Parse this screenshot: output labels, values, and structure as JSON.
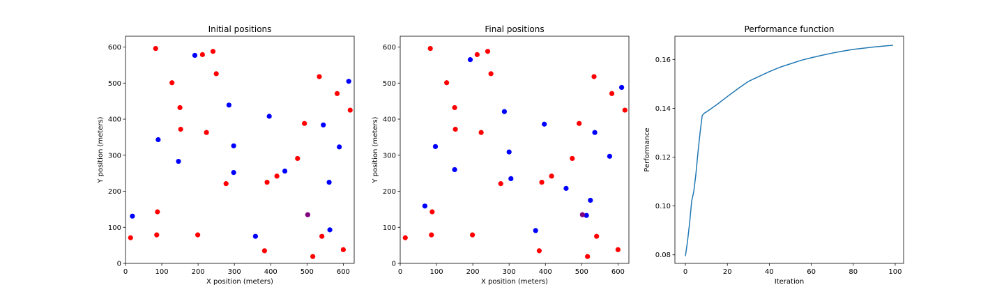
{
  "chart_data": [
    {
      "type": "scatter",
      "title": "Initial positions",
      "xlabel": "X position (meters)",
      "ylabel": "Y position (meters)",
      "xlim": [
        0,
        630
      ],
      "ylim": [
        0,
        630
      ],
      "xticks": [
        0,
        100,
        200,
        300,
        400,
        500,
        600
      ],
      "yticks": [
        0,
        100,
        200,
        300,
        400,
        500,
        600
      ],
      "series": [
        {
          "color": "#ff0000",
          "points": [
            [
              83,
              596
            ],
            [
              212,
              579
            ],
            [
              241,
              588
            ],
            [
              250,
              526
            ],
            [
              128,
              501
            ],
            [
              150,
              432
            ],
            [
              152,
              372
            ],
            [
              223,
              363
            ],
            [
              14,
              71
            ],
            [
              88,
              143
            ],
            [
              86,
              79
            ],
            [
              199,
              79
            ],
            [
              277,
              221
            ],
            [
              390,
              225
            ],
            [
              417,
              242
            ],
            [
              474,
              291
            ],
            [
              493,
              388
            ],
            [
              534,
              518
            ],
            [
              583,
              471
            ],
            [
              619,
              425
            ],
            [
              383,
              35
            ],
            [
              516,
              19
            ],
            [
              541,
              75
            ],
            [
              600,
              38
            ]
          ]
        },
        {
          "color": "#0000ff",
          "points": [
            [
              191,
              577
            ],
            [
              285,
              439
            ],
            [
              396,
              408
            ],
            [
              90,
              343
            ],
            [
              146,
              283
            ],
            [
              298,
              326
            ],
            [
              298,
              252
            ],
            [
              439,
              256
            ],
            [
              19,
              131
            ],
            [
              358,
              75
            ],
            [
              545,
              384
            ],
            [
              589,
              323
            ],
            [
              561,
              225
            ],
            [
              563,
              93
            ],
            [
              615,
              505
            ]
          ]
        },
        {
          "color": "#800080",
          "points": [
            [
              502,
              135
            ]
          ]
        }
      ]
    },
    {
      "type": "scatter",
      "title": "Final positions",
      "xlabel": "X position (meters)",
      "ylabel": "Y position (meters)",
      "xlim": [
        0,
        630
      ],
      "ylim": [
        0,
        630
      ],
      "xticks": [
        0,
        100,
        200,
        300,
        400,
        500,
        600
      ],
      "yticks": [
        0,
        100,
        200,
        300,
        400,
        500,
        600
      ],
      "series": [
        {
          "color": "#ff0000",
          "points": [
            [
              83,
              596
            ],
            [
              212,
              579
            ],
            [
              241,
              588
            ],
            [
              250,
              526
            ],
            [
              128,
              501
            ],
            [
              150,
              432
            ],
            [
              152,
              372
            ],
            [
              223,
              363
            ],
            [
              14,
              71
            ],
            [
              88,
              143
            ],
            [
              86,
              79
            ],
            [
              199,
              79
            ],
            [
              277,
              221
            ],
            [
              390,
              225
            ],
            [
              417,
              242
            ],
            [
              474,
              291
            ],
            [
              493,
              388
            ],
            [
              534,
              518
            ],
            [
              583,
              471
            ],
            [
              619,
              425
            ],
            [
              383,
              35
            ],
            [
              516,
              19
            ],
            [
              541,
              75
            ],
            [
              600,
              38
            ]
          ]
        },
        {
          "color": "#0000ff",
          "points": [
            [
              193,
              565
            ],
            [
              287,
              421
            ],
            [
              397,
              386
            ],
            [
              97,
              324
            ],
            [
              150,
              260
            ],
            [
              300,
              309
            ],
            [
              305,
              235
            ],
            [
              457,
              208
            ],
            [
              68,
              159
            ],
            [
              373,
              91
            ],
            [
              536,
              363
            ],
            [
              577,
              297
            ],
            [
              524,
              175
            ],
            [
              513,
              133
            ],
            [
              610,
              488
            ]
          ]
        },
        {
          "color": "#800080",
          "points": [
            [
              502,
              135
            ]
          ]
        }
      ]
    },
    {
      "type": "line",
      "title": "Performance function",
      "xlabel": "Iteration",
      "ylabel": "Performance",
      "xlim": [
        -5,
        104
      ],
      "ylim": [
        0.0765,
        0.1695
      ],
      "xticks": [
        0,
        20,
        40,
        60,
        80,
        100
      ],
      "yticks": [
        0.08,
        0.1,
        0.12,
        0.14,
        0.16
      ],
      "ytick_labels": [
        "0.08",
        "0.10",
        "0.12",
        "0.14",
        "0.16"
      ],
      "series": [
        {
          "color": "#1f77b4",
          "x": [
            0,
            1,
            2,
            3,
            4,
            5,
            6,
            7,
            8,
            9,
            10,
            12,
            15,
            20,
            25,
            30,
            32,
            35,
            40,
            45,
            50,
            55,
            60,
            65,
            70,
            75,
            80,
            85,
            90,
            95,
            99
          ],
          "y": [
            0.0795,
            0.0855,
            0.093,
            0.102,
            0.106,
            0.113,
            0.122,
            0.13,
            0.137,
            0.138,
            0.1385,
            0.1397,
            0.1415,
            0.1448,
            0.148,
            0.151,
            0.1518,
            0.153,
            0.155,
            0.1568,
            0.1582,
            0.1596,
            0.1607,
            0.1617,
            0.1626,
            0.1634,
            0.1641,
            0.1646,
            0.1651,
            0.1655,
            0.1658
          ]
        }
      ]
    }
  ]
}
